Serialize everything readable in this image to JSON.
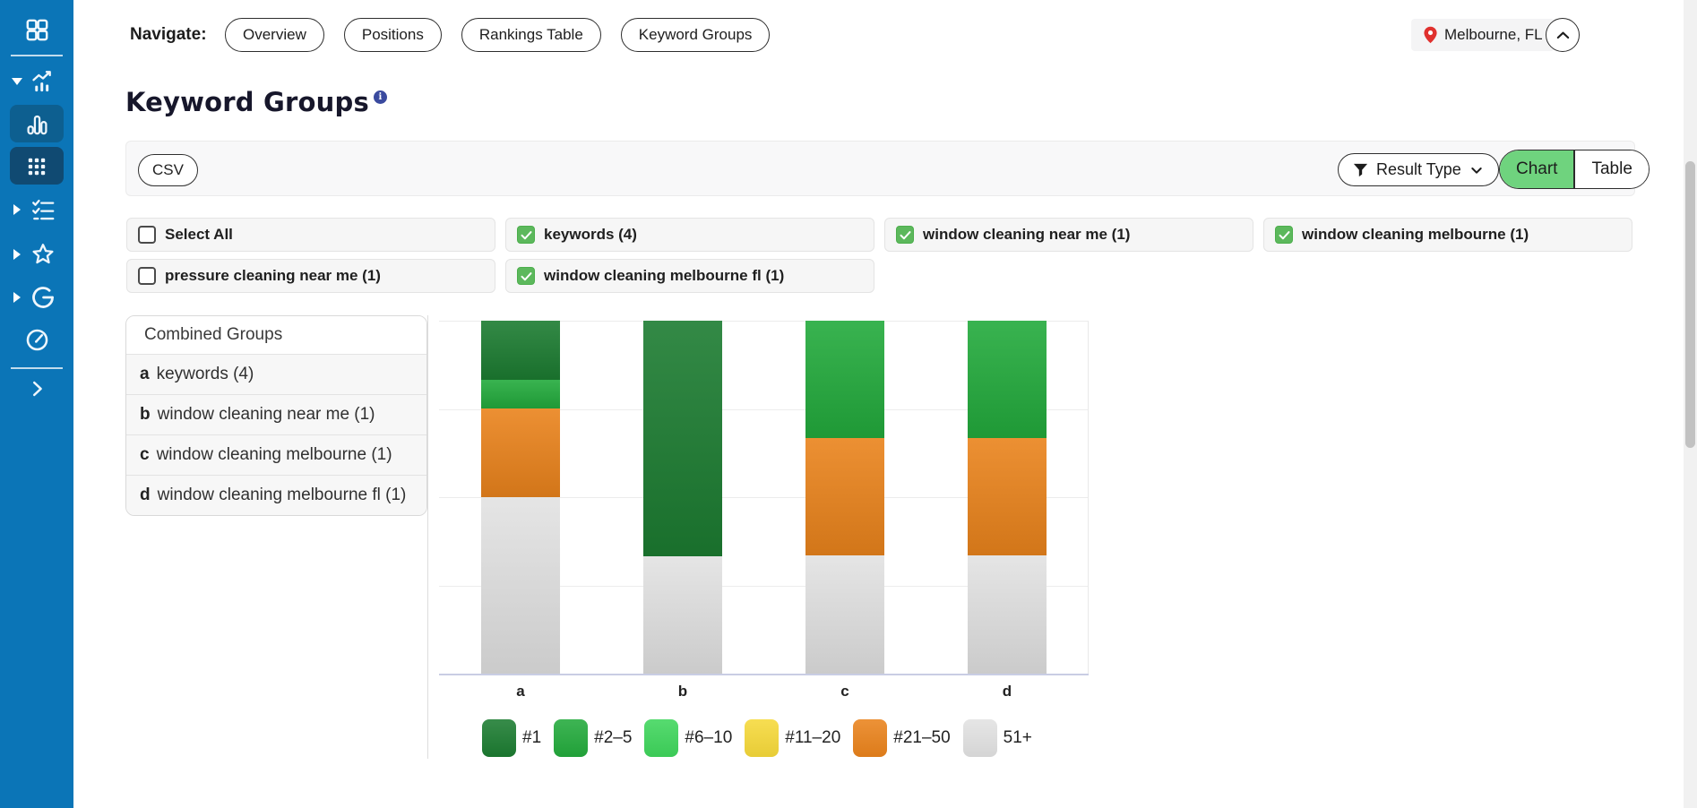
{
  "colors": {
    "sidebar_blue": "#0b75b7",
    "chart_toggle_green": "#6fd37e",
    "checkbox_green": "#5cb85c",
    "pin_red": "#e0312e",
    "info_blue": "#3a4a9f"
  },
  "topnav": {
    "label": "Navigate:",
    "buttons": [
      "Overview",
      "Positions",
      "Rankings Table",
      "Keyword Groups"
    ],
    "location": "Melbourne, FL"
  },
  "page": {
    "title": "Keyword Groups",
    "info_glyph": "i"
  },
  "toolbar": {
    "csv": "CSV",
    "result_type": "Result Type",
    "chart_toggle": "Chart",
    "table_toggle": "Table"
  },
  "filters": [
    {
      "label": "Select All",
      "checked": false
    },
    {
      "label": "keywords (4)",
      "checked": true
    },
    {
      "label": "window cleaning near me (1)",
      "checked": true
    },
    {
      "label": "window cleaning melbourne (1)",
      "checked": true
    },
    {
      "label": "pressure cleaning near me (1)",
      "checked": false
    },
    {
      "label": "window cleaning melbourne fl (1)",
      "checked": true
    }
  ],
  "groups_panel": {
    "header": "Combined Groups",
    "rows": [
      {
        "key": "a",
        "label": "keywords (4)"
      },
      {
        "key": "b",
        "label": "window cleaning near me (1)"
      },
      {
        "key": "c",
        "label": "window cleaning melbourne (1)"
      },
      {
        "key": "d",
        "label": "window cleaning melbourne fl (1)"
      }
    ]
  },
  "chart_data": {
    "type": "bar",
    "stacked": true,
    "orientation": "vertical",
    "value_unit": "percent of keyword results per ranking bucket",
    "categories": [
      "a",
      "b",
      "c",
      "d"
    ],
    "series": [
      {
        "name": "#1",
        "color": "#1c7c31",
        "values": [
          16.7,
          66.7,
          0,
          0
        ]
      },
      {
        "name": "#2–5",
        "color": "#23aa3c",
        "values": [
          8.3,
          0,
          33.3,
          33.3
        ]
      },
      {
        "name": "#6–10",
        "color": "#3fd65c",
        "values": [
          0,
          0,
          0,
          0
        ]
      },
      {
        "name": "#11–20",
        "color": "#f6d93a",
        "values": [
          0,
          0,
          0,
          0
        ]
      },
      {
        "name": "#21–50",
        "color": "#ea831c",
        "values": [
          25,
          0,
          33.3,
          33.3
        ]
      },
      {
        "name": "51+",
        "color": "#e2e2e2",
        "values": [
          50,
          33.3,
          33.4,
          33.4
        ]
      }
    ],
    "ylim": [
      0,
      100
    ],
    "grid": "horizontal",
    "legend_position": "bottom"
  }
}
